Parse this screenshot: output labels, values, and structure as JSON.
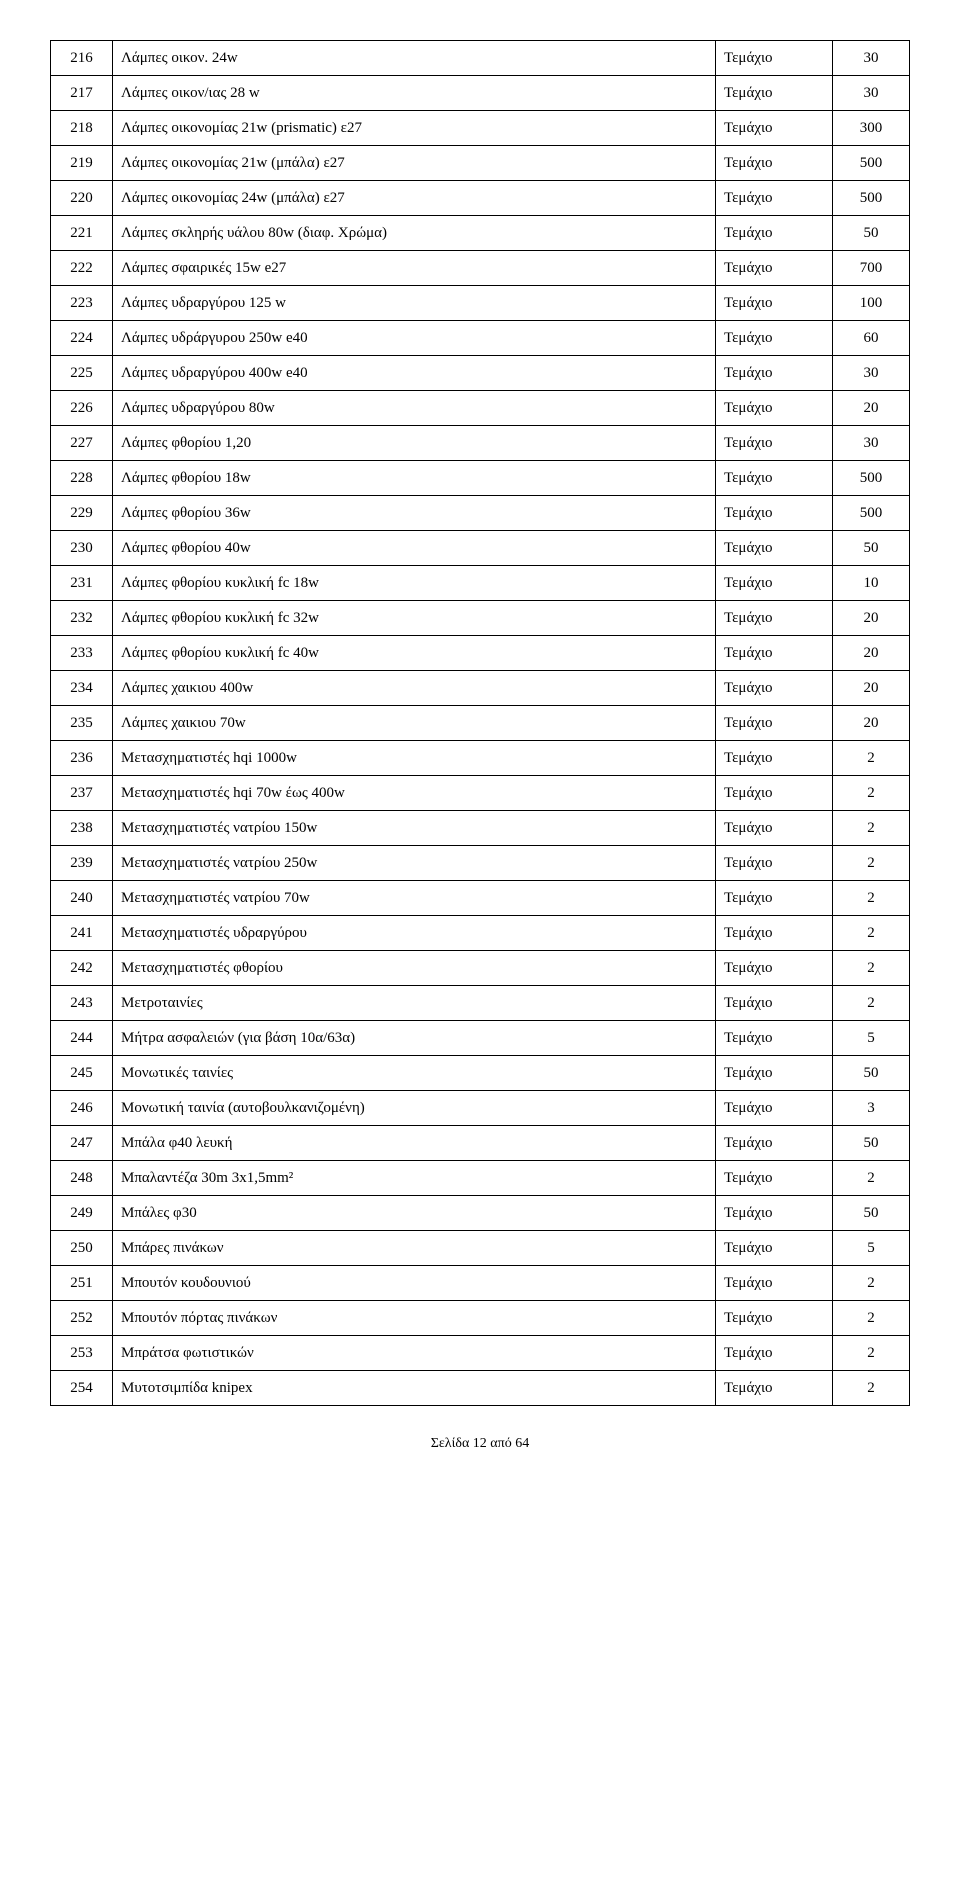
{
  "table": {
    "columns": [
      {
        "key": "num",
        "class": "num"
      },
      {
        "key": "desc",
        "class": "desc"
      },
      {
        "key": "unit",
        "class": "unit"
      },
      {
        "key": "qty",
        "class": "qty"
      }
    ],
    "rows": [
      {
        "num": "216",
        "desc": "Λάμπες οικον. 24w",
        "unit": "Τεμάχιο",
        "qty": "30"
      },
      {
        "num": "217",
        "desc": "Λάμπες οικον/ιας 28 w",
        "unit": "Τεμάχιο",
        "qty": "30"
      },
      {
        "num": "218",
        "desc": "Λάμπες οικονομίας 21w (prismatic) ε27",
        "unit": "Τεμάχιο",
        "qty": "300"
      },
      {
        "num": "219",
        "desc": "Λάμπες οικονομίας 21w (μπάλα) ε27",
        "unit": "Τεμάχιο",
        "qty": "500"
      },
      {
        "num": "220",
        "desc": "Λάμπες οικονομίας 24w (μπάλα) ε27",
        "unit": "Τεμάχιο",
        "qty": "500"
      },
      {
        "num": "221",
        "desc": "Λάμπες σκληρής υάλου 80w (διαφ. Χρώμα)",
        "unit": "Τεμάχιο",
        "qty": "50"
      },
      {
        "num": "222",
        "desc": "Λάμπες σφαιρικές 15w e27",
        "unit": "Τεμάχιο",
        "qty": "700"
      },
      {
        "num": "223",
        "desc": "Λάμπες υδραργύρου 125 w",
        "unit": "Τεμάχιο",
        "qty": "100"
      },
      {
        "num": "224",
        "desc": "Λάμπες υδράργυρου 250w e40",
        "unit": "Τεμάχιο",
        "qty": "60"
      },
      {
        "num": "225",
        "desc": "Λάμπες υδραργύρου 400w e40",
        "unit": "Τεμάχιο",
        "qty": "30"
      },
      {
        "num": "226",
        "desc": "Λάμπες υδραργύρου 80w",
        "unit": "Τεμάχιο",
        "qty": "20"
      },
      {
        "num": "227",
        "desc": "Λάμπες φθορίου 1,20",
        "unit": "Τεμάχιο",
        "qty": "30"
      },
      {
        "num": "228",
        "desc": "Λάμπες φθορίου 18w",
        "unit": "Τεμάχιο",
        "qty": "500"
      },
      {
        "num": "229",
        "desc": "Λάμπες φθορίου 36w",
        "unit": "Τεμάχιο",
        "qty": "500"
      },
      {
        "num": "230",
        "desc": "Λάμπες φθορίου 40w",
        "unit": "Τεμάχιο",
        "qty": "50"
      },
      {
        "num": "231",
        "desc": "Λάμπες φθορίου κυκλική fc 18w",
        "unit": "Τεμάχιο",
        "qty": "10"
      },
      {
        "num": "232",
        "desc": "Λάμπες φθορίου κυκλική fc 32w",
        "unit": "Τεμάχιο",
        "qty": "20"
      },
      {
        "num": "233",
        "desc": "Λάμπες φθορίου κυκλική fc 40w",
        "unit": "Τεμάχιο",
        "qty": "20"
      },
      {
        "num": "234",
        "desc": "Λάμπες χαικιου 400w",
        "unit": "Τεμάχιο",
        "qty": "20"
      },
      {
        "num": "235",
        "desc": "Λάμπες χαικιου 70w",
        "unit": "Τεμάχιο",
        "qty": "20"
      },
      {
        "num": "236",
        "desc": "Μετασχηματιστές hqi 1000w",
        "unit": "Τεμάχιο",
        "qty": "2"
      },
      {
        "num": "237",
        "desc": "Μετασχηματιστές hqi 70w έως 400w",
        "unit": "Τεμάχιο",
        "qty": "2"
      },
      {
        "num": "238",
        "desc": "Μετασχηματιστές νατρίου 150w",
        "unit": "Τεμάχιο",
        "qty": "2"
      },
      {
        "num": "239",
        "desc": "Μετασχηματιστές νατρίου 250w",
        "unit": "Τεμάχιο",
        "qty": "2"
      },
      {
        "num": "240",
        "desc": "Μετασχηματιστές νατρίου 70w",
        "unit": "Τεμάχιο",
        "qty": "2"
      },
      {
        "num": "241",
        "desc": "Μετασχηματιστές υδραργύρου",
        "unit": "Τεμάχιο",
        "qty": "2"
      },
      {
        "num": "242",
        "desc": "Μετασχηματιστές φθορίου",
        "unit": "Τεμάχιο",
        "qty": "2"
      },
      {
        "num": "243",
        "desc": "Μετροταινίες",
        "unit": "Τεμάχιο",
        "qty": "2"
      },
      {
        "num": "244",
        "desc": "Μήτρα ασφαλειών (για βάση 10α/63α)",
        "unit": "Τεμάχιο",
        "qty": "5"
      },
      {
        "num": "245",
        "desc": "Μονωτικές ταινίες",
        "unit": "Τεμάχιο",
        "qty": "50"
      },
      {
        "num": "246",
        "desc": "Μονωτική ταινία (αυτοβουλκανιζομένη)",
        "unit": "Τεμάχιο",
        "qty": "3"
      },
      {
        "num": "247",
        "desc": "Μπάλα φ40 λευκή",
        "unit": "Τεμάχιο",
        "qty": "50"
      },
      {
        "num": "248",
        "desc": "Μπαλαντέζα 30m 3x1,5mm²",
        "unit": "Τεμάχιο",
        "qty": "2"
      },
      {
        "num": "249",
        "desc": "Μπάλες φ30",
        "unit": "Τεμάχιο",
        "qty": "50"
      },
      {
        "num": "250",
        "desc": "Μπάρες πινάκων",
        "unit": "Τεμάχιο",
        "qty": "5"
      },
      {
        "num": "251",
        "desc": "Μπουτόν κουδουνιού",
        "unit": "Τεμάχιο",
        "qty": "2"
      },
      {
        "num": "252",
        "desc": "Μπουτόν πόρτας πινάκων",
        "unit": "Τεμάχιο",
        "qty": "2"
      },
      {
        "num": "253",
        "desc": "Μπράτσα φωτιστικών",
        "unit": "Τεμάχιο",
        "qty": "2"
      },
      {
        "num": "254",
        "desc": "Μυτοτσιμπίδα knipex",
        "unit": "Τεμάχιο",
        "qty": "2"
      }
    ]
  },
  "footer": "Σελίδα 12 από 64"
}
